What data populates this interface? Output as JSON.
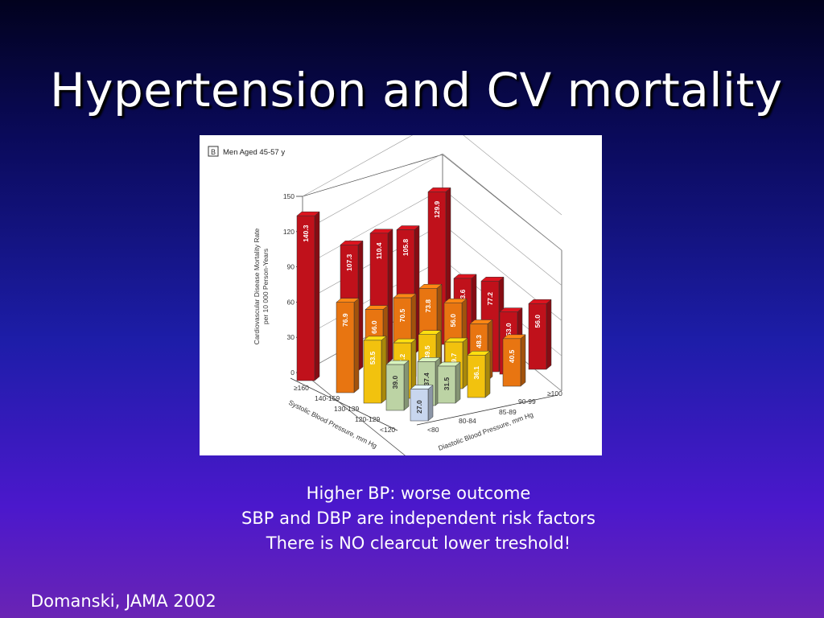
{
  "slide": {
    "title": "Hypertension and CV mortality",
    "bullets": [
      "Higher BP: worse outcome",
      "SBP and DBP are independent risk factors",
      "There is NO clearcut lower treshold!"
    ],
    "citation": "Domanski, JAMA 2002"
  },
  "colors": {
    "dbp_100": "#c0111b",
    "dbp_90_99": "#e87511",
    "dbp_85_89": "#f2c20e",
    "dbp_80_84": "#bcd3a4",
    "dbp_lt80": "#c8d6ee"
  },
  "chart_data": {
    "type": "bar",
    "panel_letter": "B",
    "panel_title": "Men Aged 45-57 y",
    "ylabel_lines": [
      "Cardiovascular Disease Mortality Rate",
      "per 10 000 Person-Years"
    ],
    "ylim": [
      0,
      150
    ],
    "yticks": [
      0,
      30,
      60,
      90,
      120,
      150
    ],
    "sbp_axis_label": "Systolic Blood Pressure, mm Hg",
    "sbp_categories": [
      "≥160",
      "140-159",
      "130-139",
      "120-129",
      "<120"
    ],
    "dbp_axis_label": "Diastolic Blood Pressure, mm Hg",
    "dbp_categories": [
      "<80",
      "80-84",
      "85-89",
      "90-99",
      "≥100"
    ],
    "series": [
      {
        "name": "≥100",
        "values": [
          140.3,
          107.3,
          110.4,
          105.8,
          129.9,
          83.6,
          77.2,
          53.0,
          56.0
        ]
      },
      {
        "name": "90-99",
        "values": [
          76.9,
          66.0,
          70.5,
          73.8,
          56.0,
          48.3,
          40.5
        ]
      },
      {
        "name": "85-89",
        "values": [
          53.5,
          47.2,
          49.5,
          39.7,
          36.1
        ]
      },
      {
        "name": "80-84",
        "values": [
          39.0,
          37.4,
          31.5
        ]
      },
      {
        "name": "<80",
        "values": [
          27.0
        ]
      }
    ],
    "value_labels": [
      "140.3",
      "107.3",
      "110.4",
      "105.8",
      "129.9",
      "83.6",
      "77.2",
      "53.0",
      "56.0",
      "76.9",
      "66.0",
      "70.5",
      "73.8",
      "56.0",
      "48.3",
      "40.5",
      "53.5",
      "47.2",
      "49.5",
      "39.7",
      "36.1",
      "39.0",
      "37.4",
      "31.5",
      "27.0"
    ]
  }
}
